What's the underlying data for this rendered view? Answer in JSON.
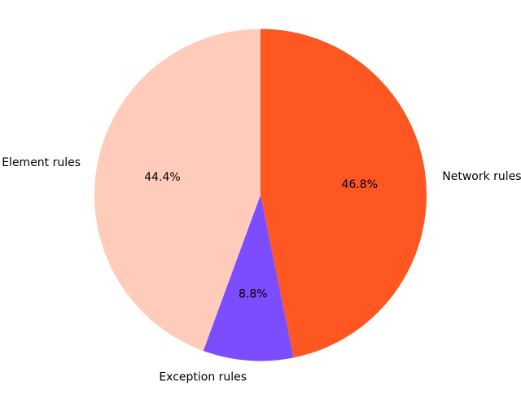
{
  "figure": {
    "background_color": "#ffffff",
    "text_color": "#000000"
  },
  "chart_data": {
    "type": "pie",
    "title": "",
    "labels": [
      "Network rules",
      "Exception rules",
      "Element rules"
    ],
    "values": [
      46.8,
      8.8,
      44.4
    ],
    "pct_labels": [
      "46.8%",
      "8.8%",
      "44.4%"
    ],
    "colors": [
      "#ff5722",
      "#7c4dff",
      "#ffccbc"
    ],
    "start_angle_deg": 90,
    "direction": "clockwise",
    "pct_distance": 0.6,
    "label_distance": 1.1,
    "legend": "none",
    "grid": "off"
  }
}
